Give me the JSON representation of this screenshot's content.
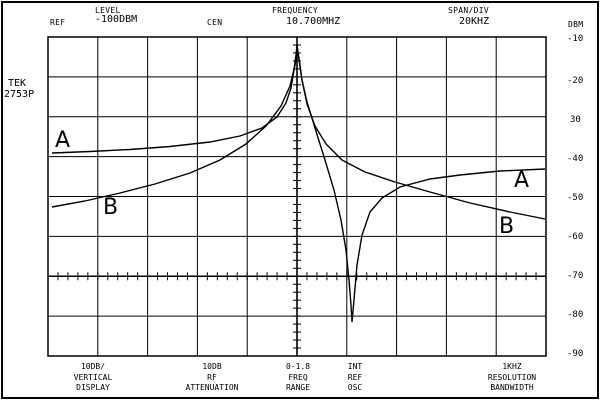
{
  "header": {
    "ref_label": "REF",
    "level_label": "LEVEL",
    "level_value": "-100DBM",
    "cen_label": "CEN",
    "frequency_label": "FREQUENCY",
    "frequency_value": "10.700MHZ",
    "span_label": "SPAN/DIV",
    "span_value": "20KHZ"
  },
  "side": {
    "model_line1": "TEK",
    "model_line2": "2753P",
    "dbm_unit": "DBM"
  },
  "db_scale": [
    "-10",
    "-20",
    "30",
    "-40",
    "-50",
    "-60",
    "-70",
    "-80",
    "-90"
  ],
  "traces": {
    "label_a": "A",
    "label_b": "B"
  },
  "footer": [
    {
      "value": "10DB/",
      "line1": "VERTICAL",
      "line2": "DISPLAY"
    },
    {
      "value": "10DB",
      "line1": "RF",
      "line2": "ATTENUATION"
    },
    {
      "value": "0-1.8",
      "line1": "FREQ",
      "line2": "RANGE"
    },
    {
      "value": "INT",
      "line1": "REF",
      "line2": "OSC"
    },
    {
      "value": "1KHZ",
      "line1": "RESOLUTION",
      "line2": "BANDWIDTH"
    }
  ]
}
